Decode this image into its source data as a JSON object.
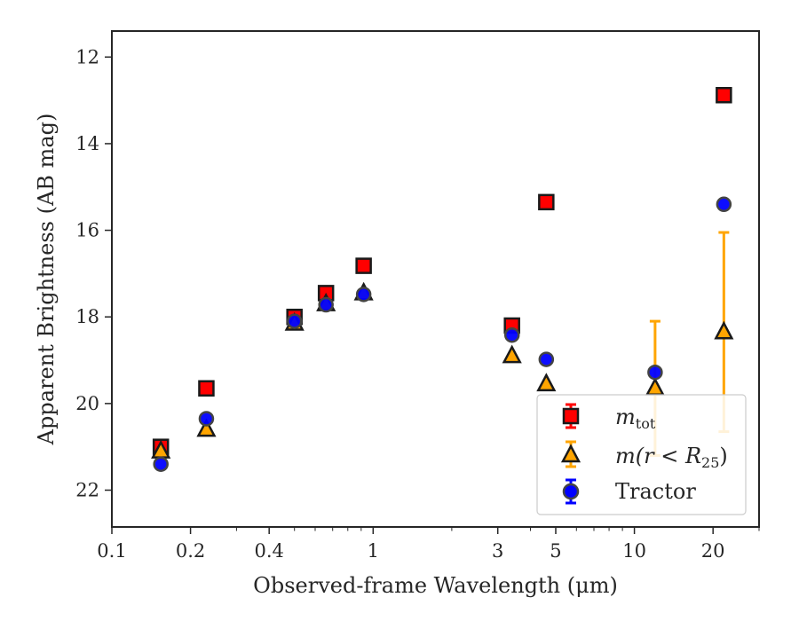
{
  "chart_data": {
    "type": "scatter",
    "xlabel": "Observed-frame Wavelength (μm)",
    "ylabel": "Apparent Brightness (AB mag)",
    "x_scale": "log",
    "y_inverted": true,
    "xlim": [
      0.1,
      30
    ],
    "ylim": [
      22.85,
      11.4
    ],
    "x_ticks": [
      {
        "value": 0.1,
        "label": "0.1"
      },
      {
        "value": 0.2,
        "label": "0.2"
      },
      {
        "value": 0.4,
        "label": "0.4"
      },
      {
        "value": 1,
        "label": "1"
      },
      {
        "value": 3,
        "label": "3"
      },
      {
        "value": 5,
        "label": "5"
      },
      {
        "value": 10,
        "label": "10"
      },
      {
        "value": 20,
        "label": "20"
      }
    ],
    "y_ticks": [
      {
        "value": 12,
        "label": "12"
      },
      {
        "value": 14,
        "label": "14"
      },
      {
        "value": 16,
        "label": "16"
      },
      {
        "value": 18,
        "label": "18"
      },
      {
        "value": 20,
        "label": "20"
      },
      {
        "value": 22,
        "label": "22"
      }
    ],
    "grid": false,
    "legend_position": "lower-right",
    "series": [
      {
        "legend_main": "m",
        "legend_sub": "tot",
        "marker": "square",
        "color": "#ff0000",
        "edge": "#1a1a1a",
        "points": [
          {
            "x": 0.154,
            "y": 21.0,
            "err": 0.05
          },
          {
            "x": 0.23,
            "y": 19.65,
            "err": 0.05
          },
          {
            "x": 0.5,
            "y": 18.0,
            "err": 0.05
          },
          {
            "x": 0.66,
            "y": 17.45,
            "err": 0.05
          },
          {
            "x": 0.92,
            "y": 16.82,
            "err": 0.05
          },
          {
            "x": 3.4,
            "y": 18.2,
            "err": 0.05
          },
          {
            "x": 4.6,
            "y": 15.35,
            "err": 0.05
          },
          {
            "x": 22.0,
            "y": 12.88,
            "err": 0.05
          }
        ]
      },
      {
        "legend_main": "m(r < R",
        "legend_sub": "25",
        "legend_tail": ")",
        "marker": "triangle",
        "color": "#ffa500",
        "edge": "#1a1a1a",
        "err_color": "#ffa500",
        "points": [
          {
            "x": 0.154,
            "y": 21.1,
            "err": 0.05
          },
          {
            "x": 0.23,
            "y": 20.6,
            "err": 0.05
          },
          {
            "x": 0.5,
            "y": 18.15,
            "err": 0.05
          },
          {
            "x": 0.66,
            "y": 17.7,
            "err": 0.05
          },
          {
            "x": 0.92,
            "y": 17.45,
            "err": 0.05
          },
          {
            "x": 3.4,
            "y": 18.9,
            "err": 0.05
          },
          {
            "x": 4.6,
            "y": 19.55,
            "err": 0.05
          },
          {
            "x": 12.0,
            "y": 19.65,
            "err": 1.55
          },
          {
            "x": 22.0,
            "y": 18.35,
            "err": 2.3
          }
        ]
      },
      {
        "legend_main": "Tractor",
        "marker": "circle",
        "color": "#0000ff",
        "edge": "#444444",
        "err_color": "#0000ff",
        "points": [
          {
            "x": 0.154,
            "y": 21.4,
            "err": 0.05
          },
          {
            "x": 0.23,
            "y": 20.35,
            "err": 0.05
          },
          {
            "x": 0.5,
            "y": 18.1,
            "err": 0.05
          },
          {
            "x": 0.66,
            "y": 17.72,
            "err": 0.05
          },
          {
            "x": 0.92,
            "y": 17.48,
            "err": 0.05
          },
          {
            "x": 3.4,
            "y": 18.42,
            "err": 0.05
          },
          {
            "x": 4.6,
            "y": 18.98,
            "err": 0.05
          },
          {
            "x": 12.0,
            "y": 19.28,
            "err": 0.05
          },
          {
            "x": 22.0,
            "y": 15.4,
            "err": 0.05
          }
        ]
      }
    ]
  }
}
